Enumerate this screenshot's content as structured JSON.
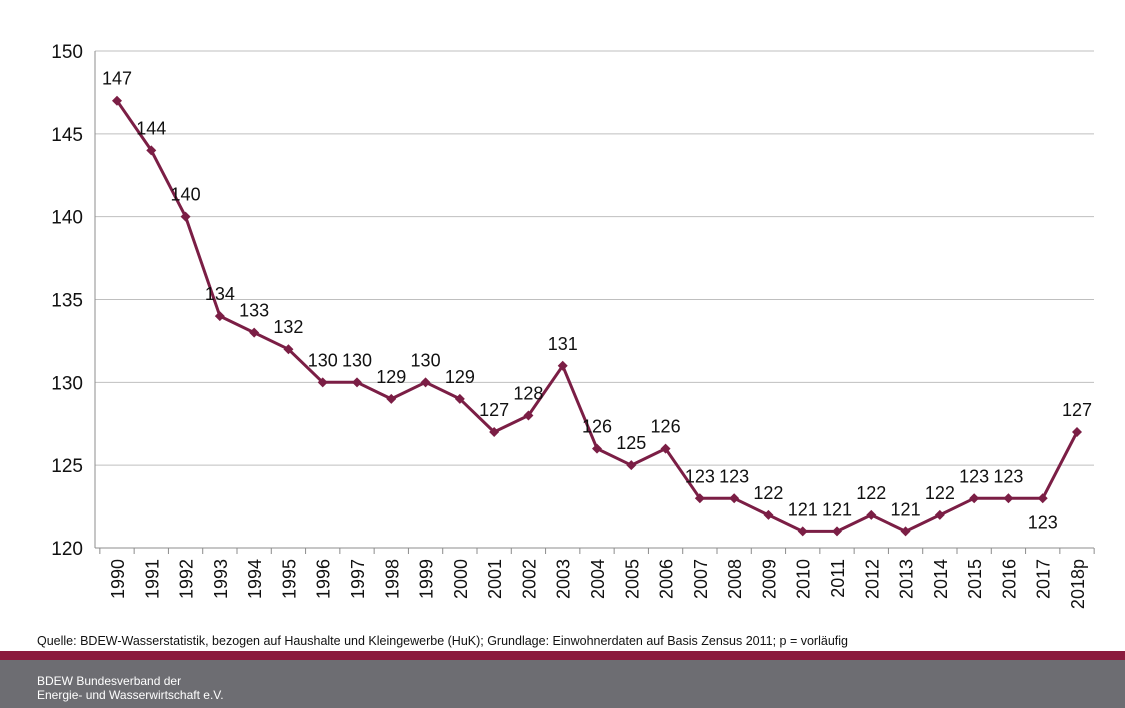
{
  "chart_data": {
    "type": "line",
    "title": "",
    "xlabel": "",
    "ylabel": "",
    "categories": [
      "1990",
      "1991",
      "1992",
      "1993",
      "1994",
      "1995",
      "1996",
      "1997",
      "1998",
      "1999",
      "2000",
      "2001",
      "2002",
      "2003",
      "2004",
      "2005",
      "2006",
      "2007",
      "2008",
      "2009",
      "2010",
      "2011",
      "2012",
      "2013",
      "2014",
      "2015",
      "2016",
      "2017",
      "2018p"
    ],
    "series": [
      {
        "values": [
          147,
          144,
          140,
          134,
          133,
          132,
          130,
          130,
          129,
          130,
          129,
          127,
          128,
          131,
          126,
          125,
          126,
          123,
          123,
          122,
          121,
          121,
          122,
          121,
          122,
          123,
          123,
          123,
          127
        ]
      }
    ],
    "ylim": [
      120,
      150
    ],
    "yticks": [
      120,
      125,
      130,
      135,
      140,
      145,
      150
    ],
    "grid": true,
    "legend": "none",
    "colors": {
      "line": "#7b1e45",
      "grid": "#bfbfbf",
      "axis": "#8c8c8c"
    }
  },
  "footer": {
    "source": "Quelle: BDEW-Wasserstatistik, bezogen auf Haushalte und Kleingewerbe (HuK); Grundlage: Einwohnerdaten auf Basis Zensus 2011; p = vorläufig",
    "org_line1": "BDEW Bundesverband der",
    "org_line2": "Energie- und Wasserwirtschaft e.V.",
    "bar_color": "#6d6d72",
    "accent_color": "#8b1b3e"
  }
}
